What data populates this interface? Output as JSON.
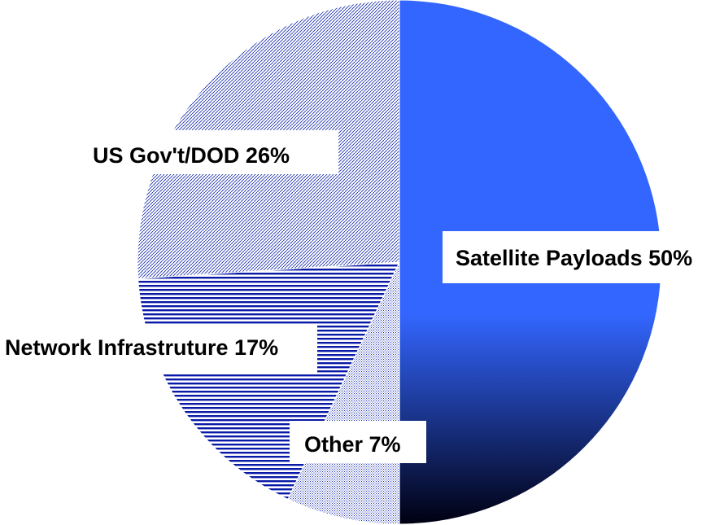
{
  "chart_data": {
    "type": "pie",
    "title": "",
    "slices": [
      {
        "label": "Satellite Payloads",
        "value": 50,
        "display": "Satellite Payloads 50%",
        "fill": "gradient",
        "colors": [
          "#3366ff",
          "#000011"
        ]
      },
      {
        "label": "Other",
        "value": 7,
        "display": "Other 7%",
        "fill": "dots",
        "colors": [
          "#1a2fb0",
          "#ffffff"
        ]
      },
      {
        "label": "Network Infrastruture",
        "value": 17,
        "display": "Network Infrastruture 17%",
        "fill": "horizontal-lines",
        "colors": [
          "#0a1aa8",
          "#ffffff"
        ]
      },
      {
        "label": "US Gov't/DOD",
        "value": 26,
        "display": "US Gov't/DOD 26%",
        "fill": "diagonal-hatch",
        "colors": [
          "#1a2fb0",
          "#ffffff"
        ]
      }
    ],
    "start_angle": "top",
    "direction": "clockwise",
    "legend": "none"
  }
}
